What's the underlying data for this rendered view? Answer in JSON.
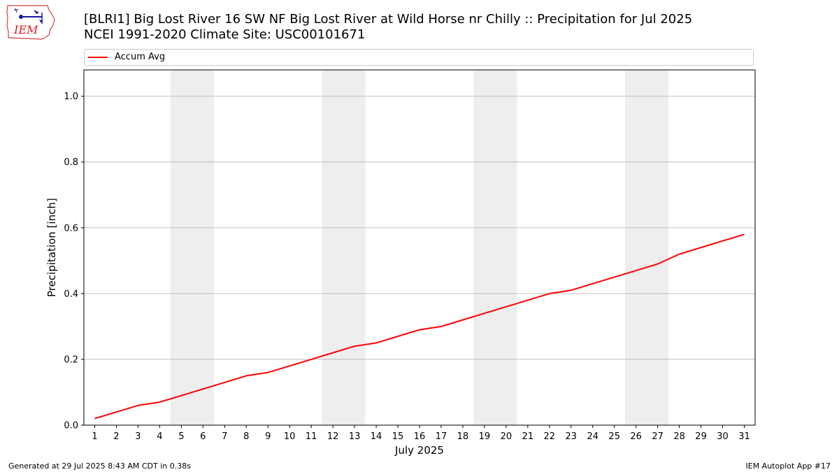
{
  "header": {
    "title_line1": "[BLRI1] Big Lost River 16 SW NF Big Lost River at Wild Horse nr Chilly :: Precipitation for Jul 2025",
    "title_line2": "NCEI 1991-2020 Climate Site: USC00101671"
  },
  "logo": {
    "text": "IEM",
    "icon": "iem-iowa-logo-icon"
  },
  "footer": {
    "left": "Generated at 29 Jul 2025 8:43 AM CDT in 0.38s",
    "right": "IEM Autoplot App #17"
  },
  "chart_data": {
    "type": "line",
    "xlabel": "July 2025",
    "ylabel": "Precipitation [inch]",
    "xlim": [
      0.5,
      31.5
    ],
    "ylim": [
      0,
      1.08
    ],
    "yticks": [
      0.0,
      0.2,
      0.4,
      0.6,
      0.8,
      1.0
    ],
    "ytick_labels": [
      "0.0",
      "0.2",
      "0.4",
      "0.6",
      "0.8",
      "1.0"
    ],
    "xticks": [
      1,
      2,
      3,
      4,
      5,
      6,
      7,
      8,
      9,
      10,
      11,
      12,
      13,
      14,
      15,
      16,
      17,
      18,
      19,
      20,
      21,
      22,
      23,
      24,
      25,
      26,
      27,
      28,
      29,
      30,
      31
    ],
    "xtick_labels": [
      "1",
      "2",
      "3",
      "4",
      "5",
      "6",
      "7",
      "8",
      "9",
      "10",
      "11",
      "12",
      "13",
      "14",
      "15",
      "16",
      "17",
      "18",
      "19",
      "20",
      "21",
      "22",
      "23",
      "24",
      "25",
      "26",
      "27",
      "28",
      "29",
      "30",
      "31"
    ],
    "grid": "horizontal",
    "legend_position": "top-left",
    "weekend_shading": [
      [
        4.5,
        6.5
      ],
      [
        11.5,
        13.5
      ],
      [
        18.5,
        20.5
      ],
      [
        25.5,
        27.5
      ]
    ],
    "weekend_color": "#eeeeee",
    "series": [
      {
        "name": "Accum Avg",
        "color": "#ff0000",
        "x": [
          1,
          2,
          3,
          4,
          5,
          6,
          7,
          8,
          9,
          10,
          11,
          12,
          13,
          14,
          15,
          16,
          17,
          18,
          19,
          20,
          21,
          22,
          23,
          24,
          25,
          26,
          27,
          28,
          29,
          30,
          31
        ],
        "values": [
          0.02,
          0.04,
          0.06,
          0.07,
          0.09,
          0.11,
          0.13,
          0.15,
          0.16,
          0.18,
          0.2,
          0.22,
          0.24,
          0.25,
          0.27,
          0.29,
          0.3,
          0.32,
          0.34,
          0.36,
          0.38,
          0.4,
          0.41,
          0.43,
          0.45,
          0.47,
          0.49,
          0.52,
          0.54,
          0.56,
          0.58
        ]
      }
    ]
  }
}
